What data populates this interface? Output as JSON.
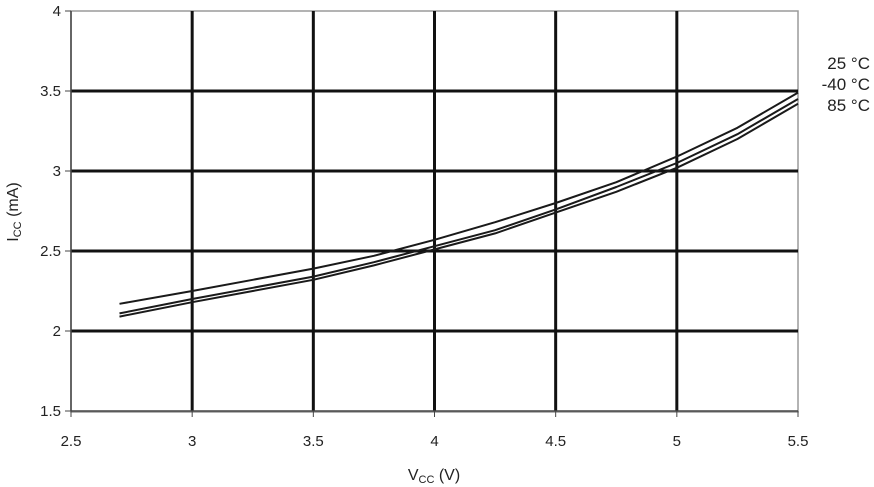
{
  "chart_data": {
    "type": "line",
    "title": "",
    "xlabel": {
      "main": "V",
      "sub": "CC",
      "unit": " (V)"
    },
    "ylabel": {
      "main": "I",
      "sub": "CC",
      "unit": " (mA)"
    },
    "xlim": [
      2.5,
      5.5
    ],
    "ylim": [
      1.5,
      4
    ],
    "xticks": [
      "2.5",
      "3",
      "3.5",
      "4",
      "4.5",
      "5",
      "5.5"
    ],
    "yticks": [
      "1.5",
      "2",
      "2.5",
      "3",
      "3.5",
      "4"
    ],
    "grid": true,
    "legend_placement": "right",
    "series": [
      {
        "name": "25 °C",
        "x": [
          2.7,
          3.0,
          3.25,
          3.5,
          3.75,
          4.0,
          4.25,
          4.5,
          4.75,
          5.0,
          5.25,
          5.5
        ],
        "y": [
          2.17,
          2.25,
          2.32,
          2.39,
          2.47,
          2.57,
          2.68,
          2.8,
          2.93,
          3.09,
          3.27,
          3.49
        ]
      },
      {
        "name": "-40 °C",
        "x": [
          2.7,
          3.0,
          3.25,
          3.5,
          3.75,
          4.0,
          4.25,
          4.5,
          4.75,
          5.0,
          5.25,
          5.5
        ],
        "y": [
          2.11,
          2.2,
          2.27,
          2.34,
          2.43,
          2.53,
          2.63,
          2.76,
          2.9,
          3.05,
          3.23,
          3.45
        ]
      },
      {
        "name": "85 °C",
        "x": [
          2.7,
          3.0,
          3.25,
          3.5,
          3.75,
          4.0,
          4.25,
          4.5,
          4.75,
          5.0,
          5.25,
          5.5
        ],
        "y": [
          2.09,
          2.18,
          2.25,
          2.32,
          2.41,
          2.51,
          2.61,
          2.74,
          2.87,
          3.02,
          3.2,
          3.42
        ]
      }
    ]
  }
}
